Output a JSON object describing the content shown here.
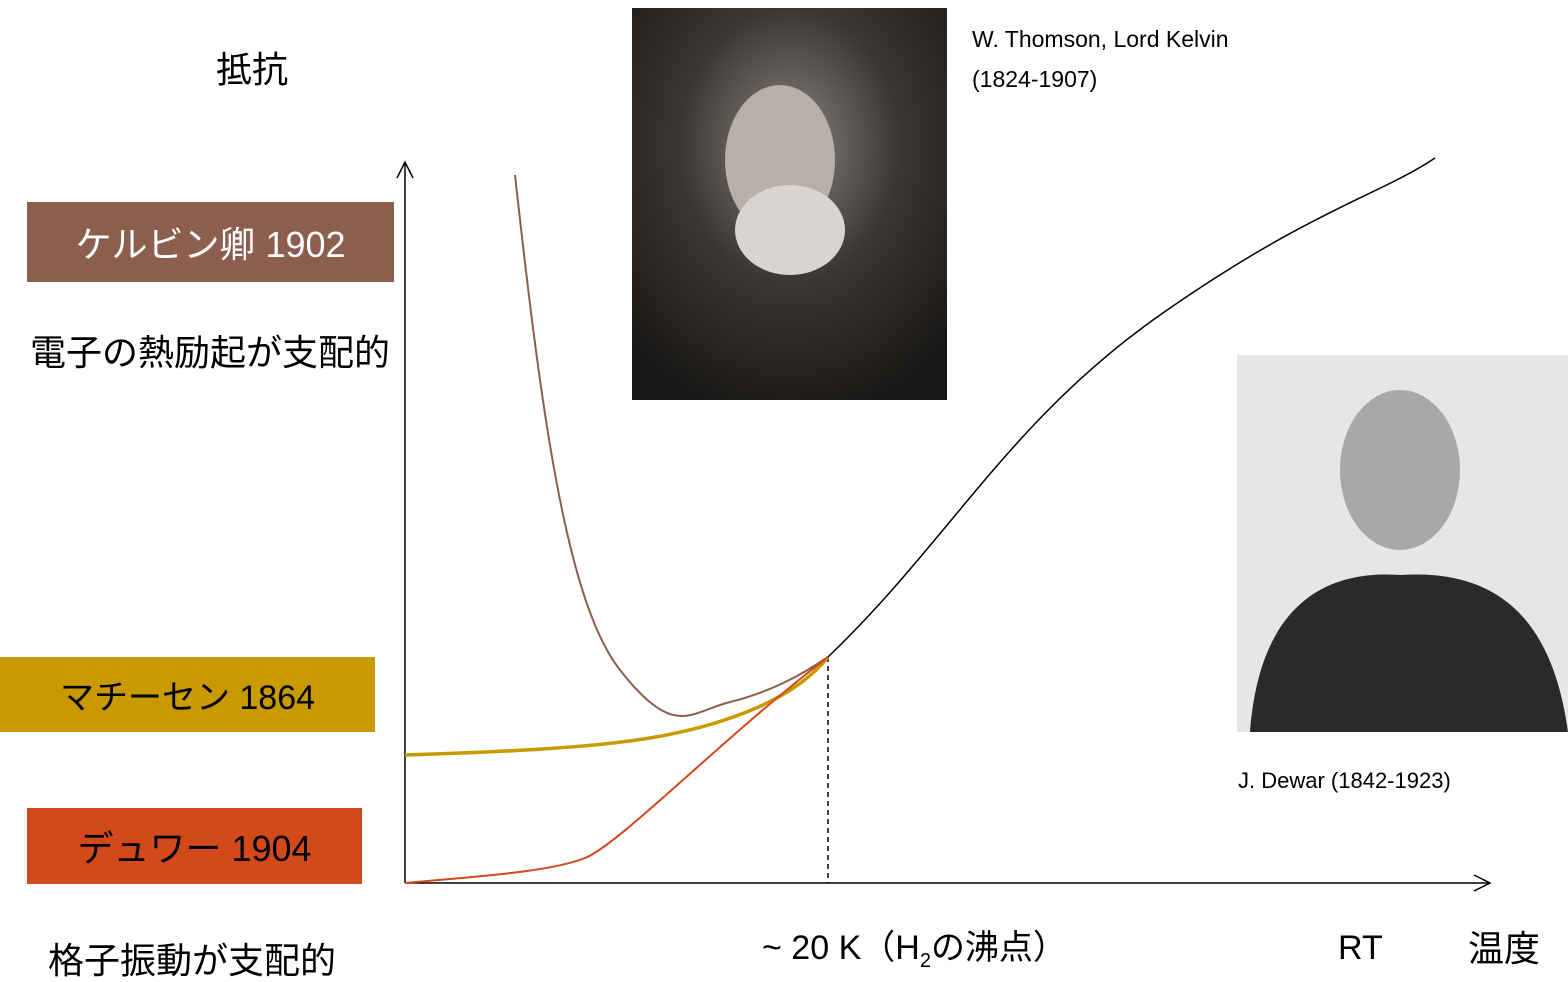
{
  "axis": {
    "y_label": "抵抗",
    "x_label": "温度",
    "rt_label": "RT",
    "marker_label": {
      "before": "~ 20 K（H",
      "sub": "2",
      "after": "の沸点）"
    }
  },
  "labels": [
    {
      "text": "ケルビン卿 1902",
      "note": "電子の熱励起が支配的"
    },
    {
      "text": "マチーセン 1864"
    },
    {
      "text": "デュワー 1904",
      "note": "格子振動が支配的"
    }
  ],
  "photos": [
    {
      "caption_lines": [
        "W. Thomson, Lord Kelvin",
        "(1824-1907)"
      ]
    },
    {
      "caption_lines": [
        "J. Dewar (1842-1923)"
      ]
    }
  ]
}
